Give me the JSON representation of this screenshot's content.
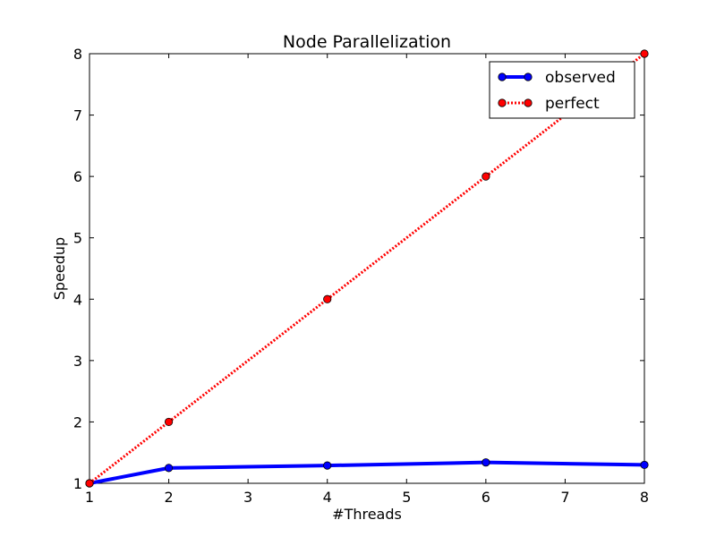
{
  "chart_data": {
    "type": "line",
    "title": "Node Parallelization",
    "xlabel": "#Threads",
    "ylabel": "Speedup",
    "xlim": [
      1,
      8
    ],
    "ylim": [
      1,
      8
    ],
    "xticks": [
      1,
      2,
      3,
      4,
      5,
      6,
      7,
      8
    ],
    "yticks": [
      1,
      2,
      3,
      4,
      5,
      6,
      7,
      8
    ],
    "grid": false,
    "legend_position": "top-right",
    "series": [
      {
        "name": "observed",
        "x": [
          1,
          2,
          4,
          6,
          8
        ],
        "y": [
          1.0,
          1.25,
          1.29,
          1.34,
          1.3
        ],
        "color": "#0000ff",
        "line_style": "solid",
        "marker": "circle"
      },
      {
        "name": "perfect",
        "x": [
          1,
          2,
          4,
          6,
          8
        ],
        "y": [
          1,
          2,
          4,
          6,
          8
        ],
        "color": "#ff0000",
        "line_style": "dotted",
        "marker": "circle"
      }
    ]
  }
}
